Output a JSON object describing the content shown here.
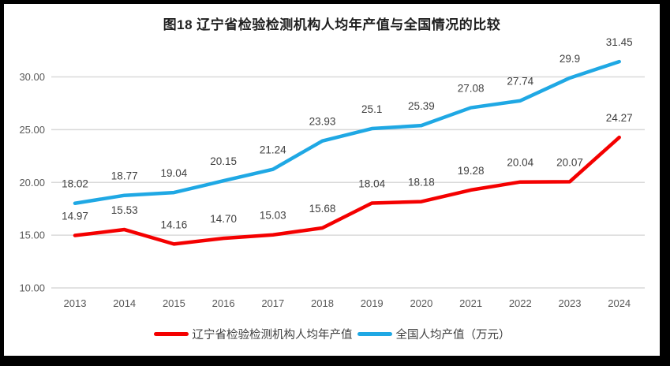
{
  "frame": {
    "border_color": "#000000"
  },
  "title": "图18 辽宁省检验检测机构人均年产值与全国情况的比较",
  "chart_data": {
    "type": "line",
    "title": "图18 辽宁省检验检测机构人均年产值与全国情况的比较",
    "categories": [
      "2013",
      "2014",
      "2015",
      "2016",
      "2017",
      "2018",
      "2019",
      "2020",
      "2021",
      "2022",
      "2023",
      "2024"
    ],
    "series": [
      {
        "name": "辽宁省检验检测机构人均年产值",
        "color": "#f40000",
        "values": [
          14.97,
          15.53,
          14.16,
          14.7,
          15.03,
          15.68,
          18.04,
          18.18,
          19.28,
          20.04,
          20.07,
          24.27
        ],
        "labels": [
          "14.97",
          "15.53",
          "14.16",
          "14.70",
          "15.03",
          "15.68",
          "18.04",
          "18.18",
          "19.28",
          "20.04",
          "20.07",
          "24.27"
        ]
      },
      {
        "name": "全国人均产值（万元）",
        "color": "#1fa8e4",
        "values": [
          18.02,
          18.77,
          19.04,
          20.15,
          21.24,
          23.93,
          25.1,
          25.39,
          27.08,
          27.74,
          29.9,
          31.45
        ],
        "labels": [
          "18.02",
          "18.77",
          "19.04",
          "20.15",
          "21.24",
          "23.93",
          "25.1",
          "25.39",
          "27.08",
          "27.74",
          "29.9",
          "31.45"
        ]
      }
    ],
    "y_ticks": [
      "10.00",
      "15.00",
      "20.00",
      "25.00",
      "30.00"
    ],
    "ylim": [
      10,
      32
    ],
    "xlabel": "",
    "ylabel": "",
    "grid": true,
    "legend_position": "bottom"
  },
  "colors": {
    "gridline": "#d9d9d9",
    "tick_label": "#595959",
    "data_label": "#404040",
    "title": "#1f1f1f"
  }
}
